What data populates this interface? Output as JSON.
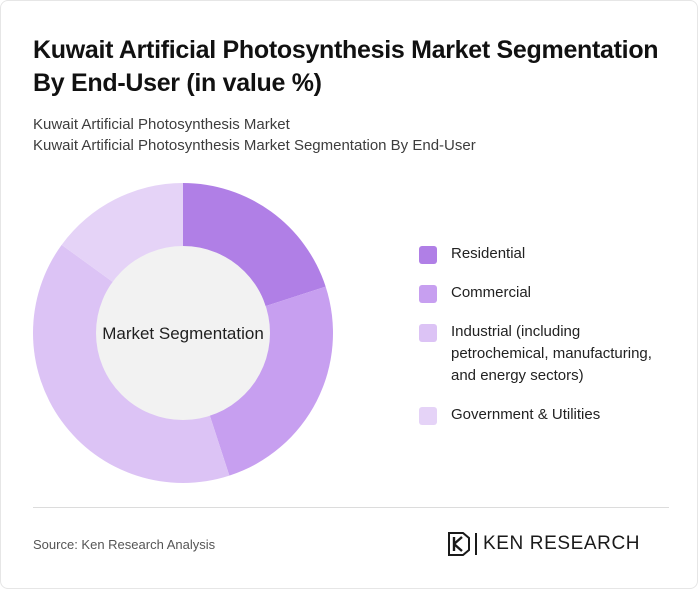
{
  "title": "Kuwait Artificial Photosynthesis Market Segmentation By End-User (in value %)",
  "subtitle_line1": "Kuwait Artificial Photosynthesis Market",
  "subtitle_line2": "Kuwait Artificial Photosynthesis Market Segmentation By End-User",
  "source": "Source: Ken Research Analysis",
  "brand": "KEN RESEARCH",
  "chart_data": {
    "type": "pie",
    "style": "donut",
    "center_label": "Market Segmentation",
    "categories": [
      "Residential",
      "Commercial",
      "Industrial (including petrochemical, manufacturing, and energy sectors)",
      "Government & Utilities"
    ],
    "values": [
      20,
      25,
      40,
      15
    ],
    "colors": [
      "#b07fe6",
      "#c79ff0",
      "#dcc3f5",
      "#e5d3f7"
    ],
    "legend": "right"
  }
}
